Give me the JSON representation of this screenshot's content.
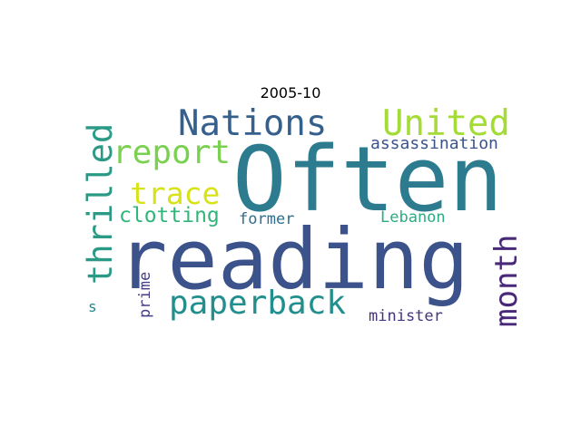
{
  "chart_data": {
    "type": "wordcloud",
    "title": "2005-10",
    "words": [
      {
        "text": "Often",
        "weight": 100,
        "color": "#2c7b8e"
      },
      {
        "text": "reading",
        "weight": 100,
        "color": "#3b528b"
      },
      {
        "text": "Nations",
        "weight": 38,
        "color": "#35608d"
      },
      {
        "text": "United",
        "weight": 38,
        "color": "#a5db36"
      },
      {
        "text": "report",
        "weight": 34,
        "color": "#7ad151"
      },
      {
        "text": "thrilled",
        "weight": 38,
        "color": "#2a9a86"
      },
      {
        "text": "trace",
        "weight": 32,
        "color": "#d8e219"
      },
      {
        "text": "paperback",
        "weight": 36,
        "color": "#218f8d"
      },
      {
        "text": "month",
        "weight": 36,
        "color": "#482878"
      },
      {
        "text": "clotting",
        "weight": 22,
        "color": "#31b57b"
      },
      {
        "text": "assassination",
        "weight": 18,
        "color": "#3b528b"
      },
      {
        "text": "former",
        "weight": 16,
        "color": "#2e6f8e"
      },
      {
        "text": "Lebanon",
        "weight": 16,
        "color": "#29af7f"
      },
      {
        "text": "minister",
        "weight": 16,
        "color": "#46337f"
      },
      {
        "text": "prime",
        "weight": 16,
        "color": "#433e85"
      },
      {
        "text": "s",
        "weight": 14,
        "color": "#23898e"
      }
    ]
  }
}
